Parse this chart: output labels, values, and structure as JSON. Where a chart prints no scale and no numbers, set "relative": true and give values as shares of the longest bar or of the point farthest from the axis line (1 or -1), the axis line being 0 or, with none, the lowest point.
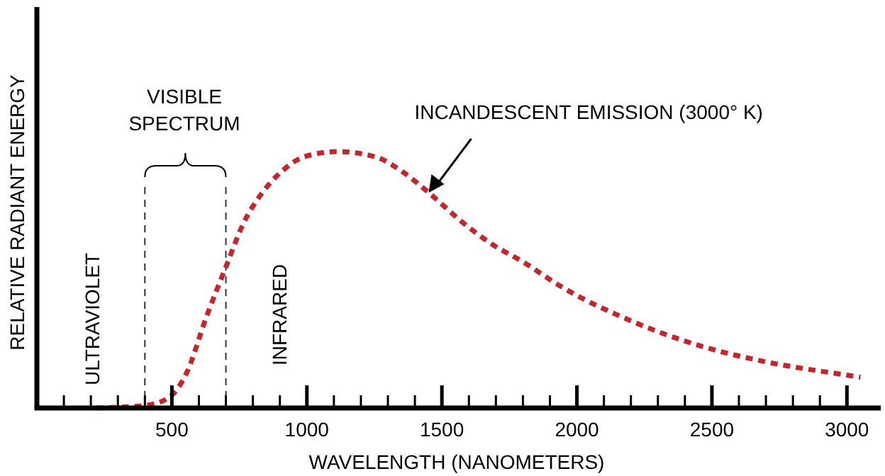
{
  "chart_data": {
    "type": "line",
    "relative": true,
    "xlabel": "WAVELENGTH (NANOMETERS)",
    "ylabel": "RELATIVE RADIANT ENERGY",
    "xlim": [
      0,
      3120
    ],
    "xticks": [
      {
        "value": 100,
        "label": null
      },
      {
        "value": 200,
        "label": null
      },
      {
        "value": 300,
        "label": null
      },
      {
        "value": 400,
        "label": null
      },
      500,
      {
        "value": 600,
        "label": null
      },
      {
        "value": 700,
        "label": null
      },
      {
        "value": 800,
        "label": null
      },
      {
        "value": 900,
        "label": null
      },
      1000,
      {
        "value": 1100,
        "label": null
      },
      {
        "value": 1200,
        "label": null
      },
      {
        "value": 1300,
        "label": null
      },
      {
        "value": 1400,
        "label": null
      },
      1500,
      {
        "value": 1600,
        "label": null
      },
      {
        "value": 1700,
        "label": null
      },
      {
        "value": 1800,
        "label": null
      },
      {
        "value": 1900,
        "label": null
      },
      2000,
      {
        "value": 2100,
        "label": null
      },
      {
        "value": 2200,
        "label": null
      },
      {
        "value": 2300,
        "label": null
      },
      {
        "value": 2400,
        "label": null
      },
      2500,
      {
        "value": 2600,
        "label": null
      },
      {
        "value": 2700,
        "label": null
      },
      {
        "value": 2800,
        "label": null
      },
      {
        "value": 2900,
        "label": null
      },
      3000
    ],
    "series": [
      {
        "color": "#c1272d",
        "line_style": "dashed",
        "x": [
          220,
          300,
          400,
          488,
          556,
          626,
          700,
          765,
          835,
          904,
          991,
          1112,
          1252,
          1356,
          1451,
          1581,
          1684,
          1800,
          1947,
          2200,
          2464,
          2700,
          2988,
          3050
        ],
        "values": [
          0,
          0.003,
          0.01,
          0.04,
          0.14,
          0.35,
          0.55,
          0.72,
          0.84,
          0.92,
          0.98,
          1,
          0.98,
          0.92,
          0.84,
          0.72,
          0.64,
          0.57,
          0.47,
          0.34,
          0.24,
          0.18,
          0.13,
          0.12
        ]
      }
    ],
    "ref_lines": [
      {
        "axis": "x",
        "value": 400,
        "line_style": "dashed",
        "color": "#333333"
      },
      {
        "axis": "x",
        "value": 700,
        "line_style": "dashed",
        "color": "#333333"
      }
    ],
    "annotations": [
      "VISIBLE SPECTRUM",
      "ULTRAVIOLET",
      "INFRARED",
      {
        "text": "INCANDESCENT EMISSION (3000° K)",
        "x": 1451,
        "y": 0.84
      }
    ],
    "grid": false
  }
}
